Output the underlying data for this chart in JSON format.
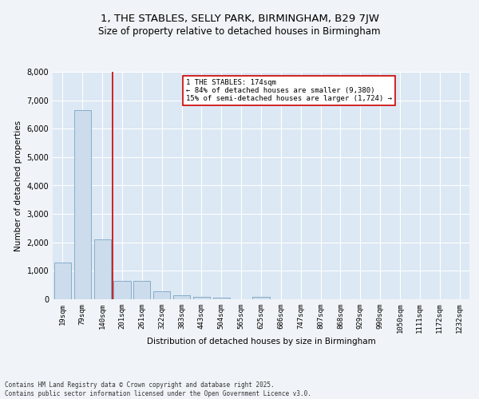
{
  "title": "1, THE STABLES, SELLY PARK, BIRMINGHAM, B29 7JW",
  "subtitle": "Size of property relative to detached houses in Birmingham",
  "xlabel": "Distribution of detached houses by size in Birmingham",
  "ylabel": "Number of detached properties",
  "bar_color": "#ccdcec",
  "bar_edge_color": "#6699bb",
  "background_color": "#dce8f4",
  "fig_background_color": "#f0f4f8",
  "grid_color": "#ffffff",
  "vline_color": "#cc0000",
  "vline_x_index": 2.5,
  "categories": [
    "19sqm",
    "79sqm",
    "140sqm",
    "201sqm",
    "261sqm",
    "322sqm",
    "383sqm",
    "443sqm",
    "504sqm",
    "565sqm",
    "625sqm",
    "686sqm",
    "747sqm",
    "807sqm",
    "868sqm",
    "929sqm",
    "990sqm",
    "1050sqm",
    "1111sqm",
    "1172sqm",
    "1232sqm"
  ],
  "values": [
    1300,
    6650,
    2100,
    650,
    650,
    290,
    140,
    75,
    60,
    0,
    75,
    0,
    0,
    0,
    0,
    0,
    0,
    0,
    0,
    0,
    0
  ],
  "annotation_text": "1 THE STABLES: 174sqm\n← 84% of detached houses are smaller (9,380)\n15% of semi-detached houses are larger (1,724) →",
  "annotation_box_color": "#ffffff",
  "annotation_border_color": "#cc0000",
  "ylim": [
    0,
    8000
  ],
  "yticks": [
    0,
    1000,
    2000,
    3000,
    4000,
    5000,
    6000,
    7000,
    8000
  ],
  "footer": "Contains HM Land Registry data © Crown copyright and database right 2025.\nContains public sector information licensed under the Open Government Licence v3.0.",
  "title_fontsize": 9.5,
  "subtitle_fontsize": 8.5,
  "tick_fontsize": 6.5,
  "ylabel_fontsize": 7.5,
  "xlabel_fontsize": 7.5,
  "footer_fontsize": 5.5
}
